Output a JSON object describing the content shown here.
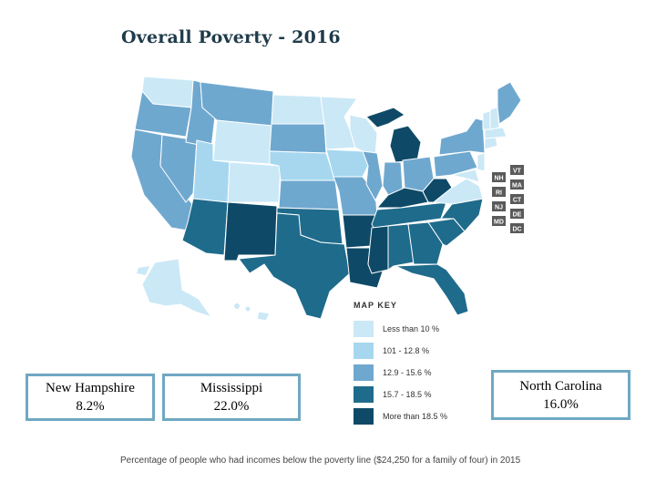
{
  "title": "Overall Poverty - 2016",
  "colors": {
    "less_than_10": "#cbe8f6",
    "range_10_12": "#a6d7ef",
    "range_13_15": "#6fa8cf",
    "range_16_18": "#1f6b8c",
    "more_than_18": "#0e4a67",
    "small_state_tag": "#5a5a5a",
    "box_border": "#6fa8c3"
  },
  "legend": {
    "title": "MAP KEY",
    "items": [
      {
        "label": "Less than 10 %",
        "color": "#cbe8f6"
      },
      {
        "label": "101 - 12.8 %",
        "color": "#a6d7ef"
      },
      {
        "label": "12.9 - 15.6 %",
        "color": "#6fa8cf"
      },
      {
        "label": "15.7 - 18.5 %",
        "color": "#1f6b8c"
      },
      {
        "label": "More than 18.5 %",
        "color": "#0e4a67"
      }
    ]
  },
  "small_states": [
    "NH",
    "VT",
    "RI",
    "MA",
    "NJ",
    "CT",
    "MD",
    "DE",
    "DC"
  ],
  "boxes": {
    "new_hampshire": {
      "name": "New Hampshire",
      "value": "8.2%"
    },
    "mississippi": {
      "name": "Mississippi",
      "value": "22.0%"
    },
    "north_carolina": {
      "name": "North Carolina",
      "value": "16.0%"
    }
  },
  "caption": "Percentage of people who had incomes below the poverty line ($24,250 for a family of four) in 2015"
}
